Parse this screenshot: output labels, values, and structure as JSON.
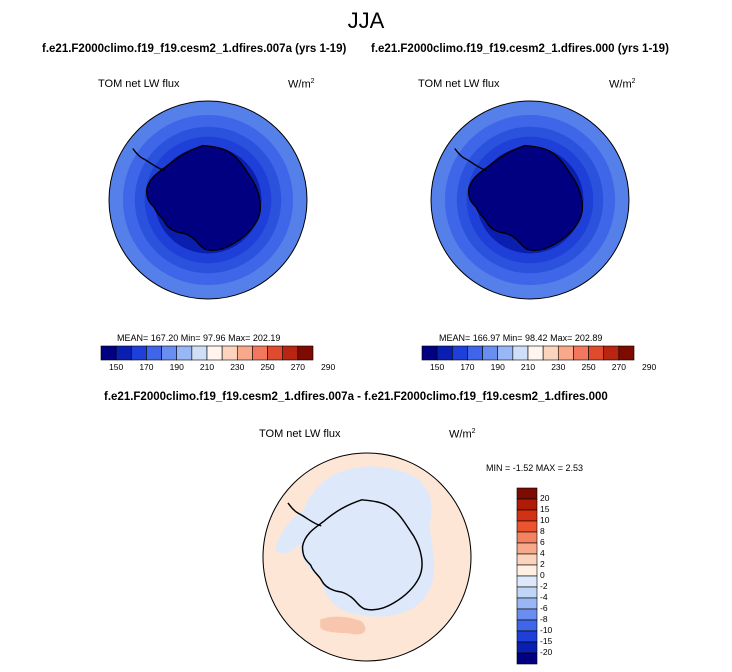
{
  "title": "JJA",
  "panels": [
    {
      "case": "f.e21.F2000climo.f19_f19.cesm2_1.dfires.007a (yrs 1-19)",
      "variable": "TOM net LW flux",
      "units_base": "W/m",
      "units_exp": "2",
      "stats": "MEAN= 167.20  Min=  97.96  Max= 202.19"
    },
    {
      "case": "f.e21.F2000climo.f19_f19.cesm2_1.dfires.000 (yrs 1-19)",
      "variable": "TOM net LW flux",
      "units_base": "W/m",
      "units_exp": "2",
      "stats": "MEAN= 166.97  Min=  98.42  Max= 202.89"
    }
  ],
  "colorbar_top": {
    "colors": [
      "#000080",
      "#0a1fb0",
      "#1f40d8",
      "#3f66e8",
      "#6a8ef0",
      "#9ab7f5",
      "#cfdff8",
      "#fff5ee",
      "#fcd3bc",
      "#f9a98b",
      "#f2775c",
      "#e04a2f",
      "#b82612",
      "#7d0b02"
    ],
    "tick_labels": [
      "150",
      "170",
      "190",
      "210",
      "230",
      "250",
      "270",
      "290"
    ]
  },
  "diff_panel": {
    "case": "f.e21.F2000climo.f19_f19.cesm2_1.dfires.007a - f.e21.F2000climo.f19_f19.cesm2_1.dfires.000",
    "variable": "TOM net LW flux",
    "units_base": "W/m",
    "units_exp": "2",
    "stats": "MIN = -1.52 MAX =  2.53"
  },
  "colorbar_diff": {
    "colors": [
      "#7d0b02",
      "#b01b08",
      "#d23113",
      "#ea5530",
      "#f48160",
      "#f9a98b",
      "#fcd3bc",
      "#fff0e3",
      "#dde9fb",
      "#c1d6f6",
      "#9ab7f5",
      "#6a8ef0",
      "#3f66e8",
      "#1f40d8",
      "#0a1fb0",
      "#000080"
    ],
    "tick_labels": [
      "20",
      "15",
      "10",
      "8",
      "6",
      "4",
      "2",
      "0",
      "-2",
      "-4",
      "-6",
      "-8",
      "-10",
      "-15",
      "-20"
    ]
  },
  "map_colors": {
    "ocean_levels": [
      "#5580ea",
      "#3f66e8",
      "#2b52dc",
      "#1f40d8",
      "#0a1fb0",
      "#000080"
    ],
    "diff_base": "#fde6d6",
    "diff_blue": "#dde9fb",
    "diff_orange": "#f8c6ac",
    "coast": "#000000"
  }
}
